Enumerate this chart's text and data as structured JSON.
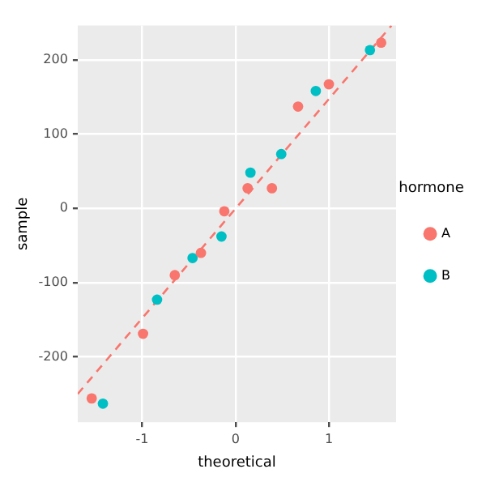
{
  "chart_data": {
    "type": "scatter",
    "xlabel": "theoretical",
    "ylabel": "sample",
    "legend_title": "hormone",
    "xlim": [
      -1.69,
      1.72
    ],
    "ylim": [
      -288,
      246
    ],
    "xticks": [
      -1,
      0,
      1
    ],
    "yticks": [
      -200,
      -100,
      0,
      100,
      200
    ],
    "grid": true,
    "legend": "right",
    "marker": "circle",
    "series": [
      {
        "name": "A",
        "color": "#f8766d",
        "x": [
          -1.54,
          -0.99,
          -0.65,
          -0.37,
          -0.12,
          0.13,
          0.39,
          0.67,
          1.0,
          1.56
        ],
        "values": [
          -256,
          -169,
          -90,
          -60,
          -4,
          27,
          27,
          137,
          167,
          223
        ]
      },
      {
        "name": "B",
        "color": "#00bfc4",
        "x": [
          -1.42,
          -0.84,
          -0.46,
          -0.15,
          0.16,
          0.49,
          0.86,
          1.44
        ],
        "values": [
          -263,
          -123,
          -67,
          -38,
          48,
          73,
          158,
          213
        ]
      },
      {
        "type": "line",
        "color": "#f8766d",
        "line_style": "dashed",
        "marker": "none",
        "x": [
          -1.69,
          1.67
        ],
        "values": [
          -250,
          246
        ]
      }
    ]
  }
}
